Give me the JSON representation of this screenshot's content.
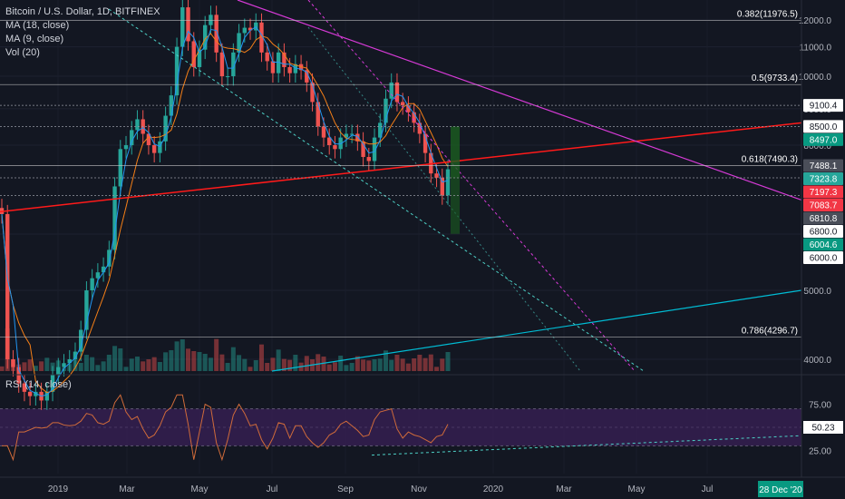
{
  "header": {
    "symbol_line": "Bitcoin / U.S. Dollar, 1D, BITFINEX",
    "indicators": [
      "MA (18, close)",
      "MA (9, close)",
      "Vol (20)"
    ]
  },
  "rsi_panel": {
    "label": "RSI (14, close)",
    "value_tag": "50.23"
  },
  "date_tag": "28 Dec '20",
  "colors": {
    "background": "#131722",
    "up": "#26a69a",
    "down": "#ef5350",
    "ma18": "#f57f17",
    "ma9": "#2196f3",
    "red_trendline": "#ff1a1a",
    "magenta_trendline": "#d63ad6",
    "teal_dashed": "#4dd0c6",
    "blue_trendline": "#00bcd4",
    "rsi_band": "#3a2057",
    "fib_line": "#c7c7c7",
    "green_tag": "#089981",
    "red_tag": "#f23645"
  },
  "chart_data": {
    "type": "candlestick",
    "scale": "log",
    "y_axis": {
      "ticks": [
        4000,
        5000,
        6000,
        8000,
        9000,
        10000,
        11000,
        12000
      ],
      "ylim": [
        3850,
        12800
      ]
    },
    "x_axis": {
      "tick_labels": [
        "2019",
        "Mar",
        "May",
        "Jul",
        "Sep",
        "Nov",
        "2020",
        "Mar",
        "May",
        "Jul"
      ]
    },
    "fib_levels": [
      {
        "label": "0.382(11976.5)",
        "value": 11976.5
      },
      {
        "label": "0.5(9733.4)",
        "value": 9733.4
      },
      {
        "label": "0.618(7490.3)",
        "value": 7490.3
      },
      {
        "label": "0.786(4296.7)",
        "value": 4296.7
      }
    ],
    "price_tags": [
      {
        "text": "9100.4",
        "value": 9100.4,
        "style": "white"
      },
      {
        "text": "8500.0",
        "value": 8500.0,
        "style": "white"
      },
      {
        "text": "8497.0",
        "value": 8497.0,
        "style": "green"
      },
      {
        "text": "7488.1",
        "value": 7488.1,
        "style": "gray"
      },
      {
        "text": "7323.8",
        "value": 7323.8,
        "style": "teal"
      },
      {
        "text": "7197.3",
        "value": 7197.3,
        "style": "red"
      },
      {
        "text": "7083.7",
        "value": 7083.7,
        "style": "red"
      },
      {
        "text": "6810.8",
        "value": 6810.8,
        "style": "gray"
      },
      {
        "text": "6800.0",
        "value": 6800.0,
        "style": "white"
      },
      {
        "text": "6004.6",
        "value": 6004.6,
        "style": "green"
      },
      {
        "text": "6000.0",
        "value": 6000.0,
        "style": "white"
      }
    ],
    "dashed_levels": [
      9100.4,
      8500.0,
      7197.3,
      6800.0
    ],
    "rsi_axis": {
      "ticks": [
        25.0,
        50.0,
        75.0
      ],
      "tick_labels": [
        "25.00",
        "50.23",
        "75.00"
      ],
      "band": [
        30,
        70
      ]
    },
    "close_series": [
      6400,
      4000,
      3900,
      3700,
      3600,
      3550,
      3600,
      3500,
      3600,
      3800,
      3900,
      3950,
      4000,
      4100,
      4400,
      5000,
      5200,
      5300,
      5400,
      5700,
      7000,
      7900,
      8000,
      8400,
      8700,
      8300,
      8000,
      7800,
      8100,
      8800,
      9400,
      11000,
      12500,
      11200,
      10300,
      10900,
      11800,
      12200,
      10800,
      10000,
      10000,
      10800,
      11500,
      11700,
      11600,
      11900,
      10800,
      10500,
      10100,
      10800,
      10300,
      10100,
      10400,
      10200,
      9800,
      9200,
      8500,
      8200,
      8000,
      7900,
      8200,
      8300,
      8300,
      8100,
      7700,
      7600,
      8200,
      8600,
      9300,
      9800,
      9200,
      9100,
      8900,
      8600,
      8300,
      7800,
      7300,
      7200,
      6800,
      7400
    ]
  }
}
